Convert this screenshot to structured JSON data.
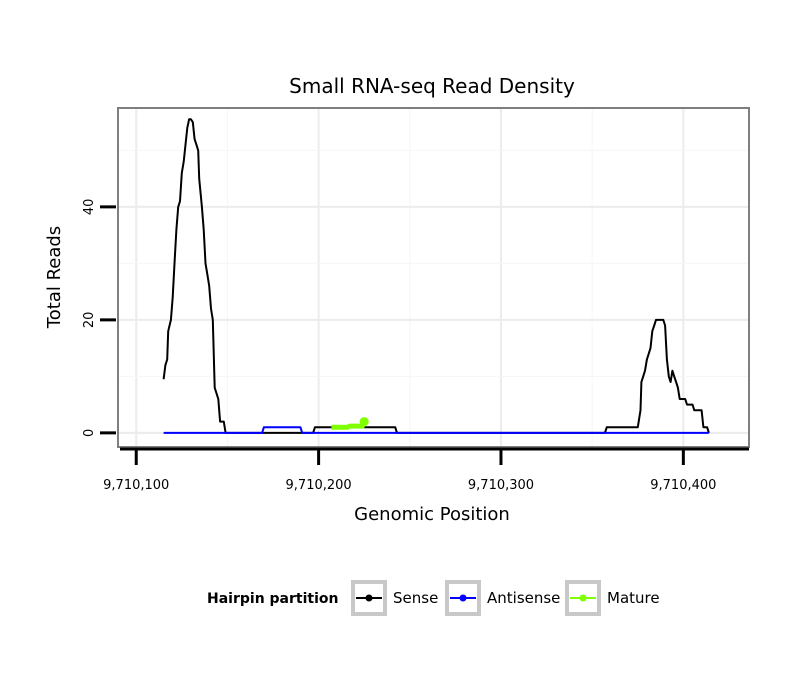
{
  "chart_data": {
    "type": "line",
    "title": "Small RNA-seq Read Density",
    "xlabel": "Genomic Position",
    "ylabel": "Total Reads",
    "xlim": [
      9710090,
      9710436
    ],
    "ylim": [
      -2.5,
      57.5
    ],
    "x_ticks": [
      9710100,
      9710200,
      9710300,
      9710400
    ],
    "x_tick_labels": [
      "9,710,100",
      "9,710,200",
      "9,710,300",
      "9,710,400"
    ],
    "y_ticks": [
      0,
      20,
      40
    ],
    "y_tick_labels": [
      "0",
      "20",
      "40"
    ],
    "grid": true,
    "legend": {
      "title": "Hairpin partition",
      "position": "bottom",
      "entries": [
        "Sense",
        "Antisense",
        "Mature"
      ]
    },
    "series": [
      {
        "name": "Sense",
        "color": "#000000",
        "points": [
          [
            9710115,
            9.5
          ],
          [
            9710116,
            12
          ],
          [
            9710117,
            13
          ],
          [
            9710117.5,
            18
          ],
          [
            9710119,
            20
          ],
          [
            9710120,
            24
          ],
          [
            9710121,
            30
          ],
          [
            9710122,
            36
          ],
          [
            9710123,
            40
          ],
          [
            9710124,
            41
          ],
          [
            9710125,
            46
          ],
          [
            9710126,
            48
          ],
          [
            9710127,
            51
          ],
          [
            9710128,
            54
          ],
          [
            9710129,
            55.5
          ],
          [
            9710130,
            55.5
          ],
          [
            9710131,
            55
          ],
          [
            9710132,
            52
          ],
          [
            9710133,
            51
          ],
          [
            9710134,
            50
          ],
          [
            9710134.5,
            45
          ],
          [
            9710136,
            40
          ],
          [
            9710137,
            36
          ],
          [
            9710138,
            30
          ],
          [
            9710139,
            28
          ],
          [
            9710140,
            26
          ],
          [
            9710141,
            22
          ],
          [
            9710142,
            20
          ],
          [
            9710143,
            8
          ],
          [
            9710144,
            7
          ],
          [
            9710145,
            6
          ],
          [
            9710146,
            2
          ],
          [
            9710147,
            2
          ],
          [
            9710148,
            2
          ],
          [
            9710149,
            0
          ],
          [
            9710197,
            0
          ],
          [
            9710198,
            1
          ],
          [
            9710224,
            1
          ],
          [
            9710225,
            1
          ],
          [
            9710236,
            1
          ],
          [
            9710242,
            1
          ],
          [
            9710243,
            0
          ],
          [
            9710357,
            0
          ],
          [
            9710358,
            1
          ],
          [
            9710375,
            1
          ],
          [
            9710376,
            3
          ],
          [
            9710376.5,
            4
          ],
          [
            9710377,
            9
          ],
          [
            9710378,
            10
          ],
          [
            9710379,
            11
          ],
          [
            9710380,
            13
          ],
          [
            9710381,
            14
          ],
          [
            9710382,
            15
          ],
          [
            9710383,
            18
          ],
          [
            9710384,
            19
          ],
          [
            9710385,
            20
          ],
          [
            9710389,
            20
          ],
          [
            9710390,
            19
          ],
          [
            9710391,
            13
          ],
          [
            9710392,
            10
          ],
          [
            9710393,
            9
          ],
          [
            9710394,
            11
          ],
          [
            9710395,
            10
          ],
          [
            9710396,
            9
          ],
          [
            9710397,
            8
          ],
          [
            9710398,
            6
          ],
          [
            9710401,
            6
          ],
          [
            9710402,
            5
          ],
          [
            9710405,
            5
          ],
          [
            9710406,
            4
          ],
          [
            9710410,
            4
          ],
          [
            9710411,
            1
          ],
          [
            9710413,
            1
          ],
          [
            9710414,
            0
          ]
        ]
      },
      {
        "name": "Antisense",
        "color": "#0000ff",
        "points": [
          [
            9710115,
            0
          ],
          [
            9710169,
            0
          ],
          [
            9710170,
            1
          ],
          [
            9710190,
            1
          ],
          [
            9710191,
            0
          ],
          [
            9710414,
            0
          ]
        ]
      },
      {
        "name": "Mature",
        "color": "#7fff00",
        "points": [
          [
            9710207,
            1
          ],
          [
            9710216,
            1
          ],
          [
            9710217,
            1.2
          ],
          [
            9710224,
            1.2
          ],
          [
            9710225,
            2
          ]
        ]
      }
    ]
  }
}
